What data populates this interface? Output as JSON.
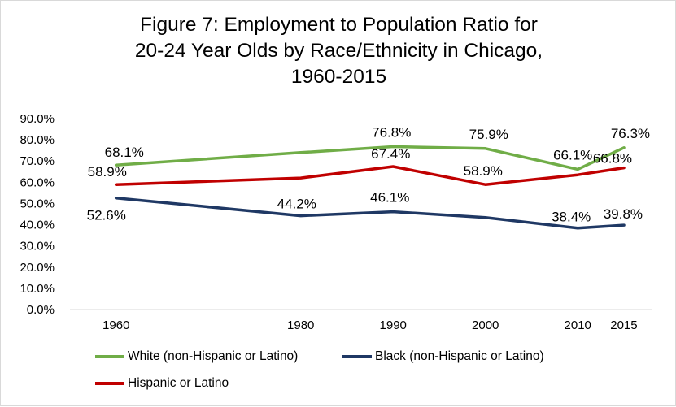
{
  "chart_data": {
    "type": "line",
    "title_lines": [
      "Figure 7: Employment to Population Ratio for",
      "20-24 Year Olds by Race/Ethnicity in Chicago,",
      "1960-2015"
    ],
    "x": [
      1960,
      1980,
      1990,
      2000,
      2010,
      2015
    ],
    "x_tick_labels": [
      "1960",
      "1980",
      "1990",
      "2000",
      "2010",
      "2015"
    ],
    "ylim": [
      0,
      90
    ],
    "y_ticks": [
      0,
      10,
      20,
      30,
      40,
      50,
      60,
      70,
      80,
      90
    ],
    "y_tick_labels": [
      "0.0%",
      "10.0%",
      "20.0%",
      "30.0%",
      "40.0%",
      "50.0%",
      "60.0%",
      "70.0%",
      "80.0%",
      "90.0%"
    ],
    "grid": false,
    "legend_position": "bottom",
    "series": [
      {
        "name": "White (non-Hispanic or Latino)",
        "color": "#70ad47",
        "values": [
          68.1,
          74.0,
          76.8,
          75.9,
          66.1,
          76.3
        ],
        "labels": [
          "68.1%",
          "",
          "76.8%",
          "75.9%",
          "66.1%",
          "76.3%"
        ]
      },
      {
        "name": "Black (non-Hispanic or Latino)",
        "color": "#1f3864",
        "values": [
          52.6,
          44.2,
          46.1,
          43.4,
          38.4,
          39.8
        ],
        "labels": [
          "52.6%",
          "44.2%",
          "46.1%",
          "",
          "38.4%",
          "39.8%"
        ]
      },
      {
        "name": "Hispanic or Latino",
        "color": "#c00000",
        "values": [
          58.9,
          62.0,
          67.4,
          58.9,
          63.5,
          66.8
        ],
        "labels": [
          "58.9%",
          "",
          "67.4%",
          "58.9%",
          "",
          "66.8%"
        ]
      }
    ]
  }
}
